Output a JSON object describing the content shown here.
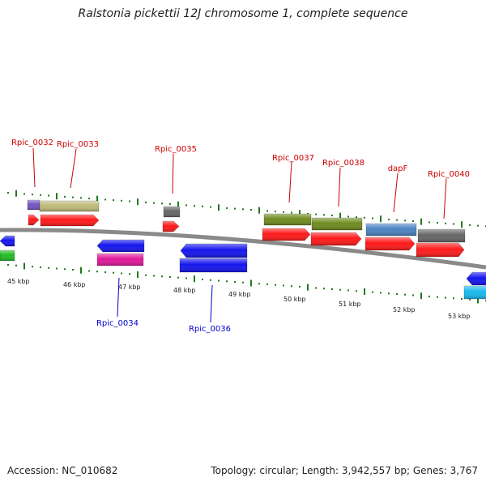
{
  "title": "Ralstonia pickettii 12J chromosome 1, complete sequence",
  "footer": {
    "accession": "Accession: NC_010682",
    "topology": "Topology: circular; Length: 3,942,557 bp; Genes: 3,767"
  },
  "ruler": {
    "labels": [
      "45 kbp",
      "46 kbp",
      "47 kbp",
      "48 kbp",
      "49 kbp",
      "50 kbp",
      "51 kbp",
      "52 kbp",
      "53 kbp"
    ]
  },
  "colors": {
    "backbone": "#8a8a8a",
    "tick": "#1f7a1f",
    "label_forward": "#cc0000",
    "label_reverse": "#0000cc",
    "cds_forward": "#ff1a1a",
    "cds_reverse": "#1515ee",
    "gene_olive": "#6f8c1f",
    "gene_tan": "#bdb978",
    "gene_purple": "#7055c0",
    "gene_gray": "#666666",
    "gene_steelblue": "#4a82c0",
    "gene_green": "#22bb22",
    "gene_magenta": "#e0189a",
    "gene_cyan": "#18b8ee"
  },
  "genes": {
    "forward": [
      "Rpic_0032",
      "Rpic_0033",
      "Rpic_0035",
      "Rpic_0037",
      "Rpic_0038",
      "dapF",
      "Rpic_0040"
    ],
    "reverse": [
      "Rpic_0034",
      "Rpic_0036"
    ]
  }
}
